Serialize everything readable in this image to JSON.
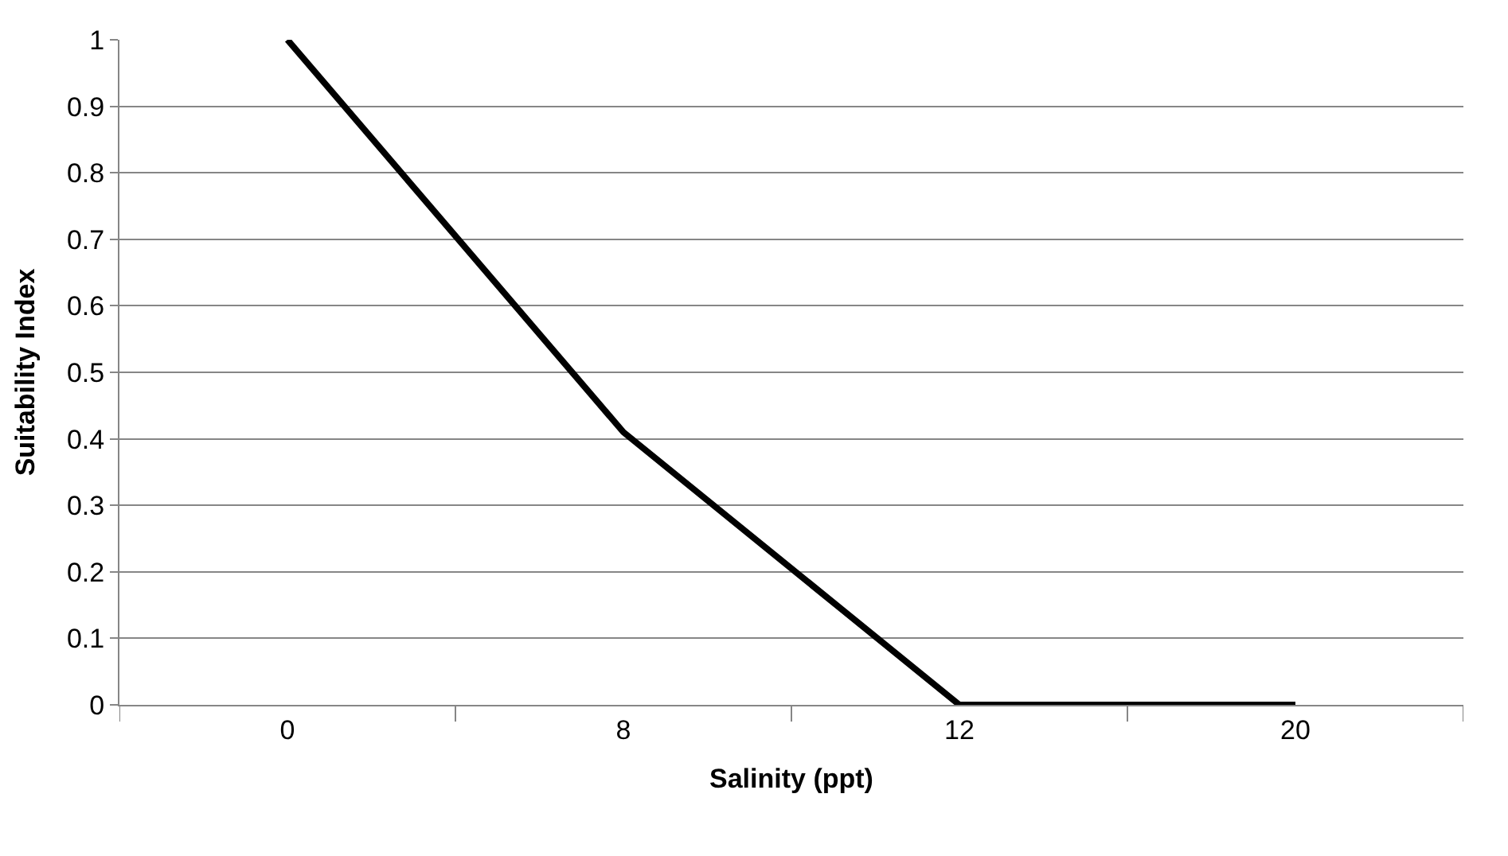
{
  "chart_data": {
    "type": "line",
    "xlabel": "Salinity (ppt)",
    "ylabel": "Suitability Index",
    "categories": [
      "0",
      "8",
      "12",
      "20"
    ],
    "series": [
      {
        "color": "#000000",
        "values": [
          1,
          0.41,
          0,
          0
        ]
      }
    ],
    "ylim": [
      0,
      1
    ],
    "yticks": [
      0,
      0.1,
      0.2,
      0.3,
      0.4,
      0.5,
      0.6,
      0.7,
      0.8,
      0.9,
      1
    ],
    "grid": "y",
    "marker": "none",
    "line_style": "solid"
  }
}
